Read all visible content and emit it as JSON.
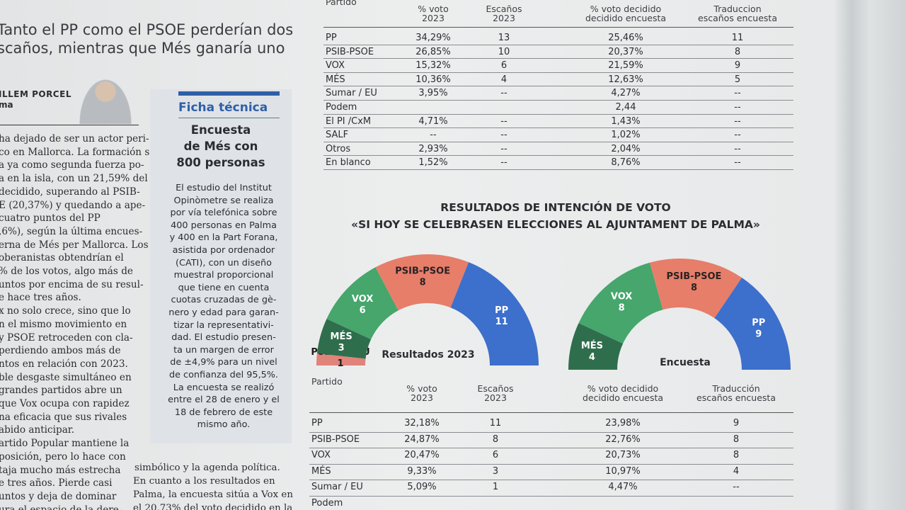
{
  "headline": [
    "Tanto el PP como el PSOE perderían dos",
    "scaños, mientras que Més ganaría uno"
  ],
  "byline": {
    "name": "ILLEM PORCEL",
    "role": "ma"
  },
  "left_column": [
    "ha dejado de ser un actor peri-",
    "co en Mallorca. La formación se",
    "a ya como segunda fuerza po-",
    "a en la isla, con un 21,59% del",
    "decidido, superando al PSIB-",
    "E (20,37%) y quedando a ape-",
    "cuatro puntos del PP",
    ",6%), según la última encues-",
    "erna de Més per Mallorca. Los",
    "oberanistas obtendrían el",
    "% de los votos, algo más de",
    "untos por encima de su resul-",
    "e hace tres años.",
    "x no solo crece, sino que lo",
    "n el mismo movimiento en",
    "y PSOE retroceden con cla-",
    "perdiendo ambos más de",
    "ntos en relación con 2023.",
    "ble desgaste simultáneo en",
    "grandes partidos abre un",
    "que Vox ocupa con rapidez",
    "na eficacia que sus rivales",
    "abido anticipar.",
    "artido Popular mantiene la",
    "posición, pero lo hace con",
    "taja mucho más estrecha",
    "e tres años. Pierde casi",
    "untos y deja de dominar",
    "ura el espacio de la dere-"
  ],
  "ficha": {
    "title": "Ficha técnica",
    "subtitle": [
      "Encuesta",
      "de Més con",
      "800 personas"
    ],
    "body": [
      "El estudio del Institut",
      "Opinòmetre se realiza",
      "por vía telefónica sobre",
      "400 personas en Palma",
      "y 400 en la Part Forana,",
      "asistida por ordenador",
      "(CATI), con un diseño",
      "muestral proporcional",
      "que tiene en cuenta",
      "cuotas cruzadas de gè-",
      "nero y edad para garan-",
      "tizar la representativi-",
      "dad. El estudio presen-",
      "ta un margen de error",
      "de ±4,9% para un nivel",
      "de confianza del 95,5%.",
      "La encuesta se realizó",
      "entre el 28 de enero y el",
      "18 de febrero de este",
      "mismo año."
    ]
  },
  "middle_column": [
    "simbólico y la agenda política.",
    "En cuanto a los resultados en",
    "Palma, la encuesta sitúa a Vox en",
    "el 20,73% del voto decidido en la"
  ],
  "table_top": {
    "header": [
      "Partido",
      "% voto\n2023",
      "Escaños\n2023",
      "% voto decidido\ndecidido encuesta",
      "Traduccion\nescaños encuesta"
    ],
    "rows": [
      [
        "PP",
        "34,29%",
        "13",
        "25,46%",
        "11"
      ],
      [
        "PSIB-PSOE",
        "26,85%",
        "10",
        "20,37%",
        "8"
      ],
      [
        "VOX",
        "15,32%",
        "6",
        "21,59%",
        "9"
      ],
      [
        "MÉS",
        "10,36%",
        "4",
        "12,63%",
        "5"
      ],
      [
        "Sumar / EU",
        "3,95%",
        "--",
        "4,27%",
        "--"
      ],
      [
        "Podem",
        null,
        null,
        "2,44",
        "--"
      ],
      [
        "El PI /CxM",
        "4,71%",
        "--",
        "1,43%",
        "--"
      ],
      [
        "SALF",
        "--",
        "--",
        "1,02%",
        "--"
      ],
      [
        "Otros",
        "2,93%",
        "--",
        "2,04%",
        "--"
      ],
      [
        "En blanco",
        "1,52%",
        "--",
        "8,76%",
        "--"
      ]
    ]
  },
  "charts_title": [
    "RESULTADOS DE INTENCIÓN DE VOTO",
    "«SI HOY SE CELEBRASEN ELECCIONES AL AJUNTAMENT DE PALMA»"
  ],
  "charts": [
    {
      "type": "semicircle",
      "label": "Resultados 2023",
      "segments": [
        {
          "name": "Podem / EU",
          "seats": 1,
          "color": "#e0837a"
        },
        {
          "name": "MÉS",
          "seats": 3,
          "color": "#2f6e4c"
        },
        {
          "name": "VOX",
          "seats": 6,
          "color": "#46a66c"
        },
        {
          "name": "PSIB-PSOE",
          "seats": 8,
          "color": "#e67e6a"
        },
        {
          "name": "PP",
          "seats": 11,
          "color": "#3d6fcc"
        }
      ]
    },
    {
      "type": "semicircle",
      "label": "Encuesta",
      "segments": [
        {
          "name": "MÉS",
          "seats": 4,
          "color": "#2f6e4c"
        },
        {
          "name": "VOX",
          "seats": 8,
          "color": "#46a66c"
        },
        {
          "name": "PSIB-PSOE",
          "seats": 8,
          "color": "#e67e6a"
        },
        {
          "name": "PP",
          "seats": 9,
          "color": "#3d6fcc"
        }
      ]
    }
  ],
  "table_bottom": {
    "header": [
      "Partido",
      "% voto\n2023",
      "Escaños\n2023",
      "% voto decidido\ndecidido encuesta",
      "Traducción\nescaños encuesta"
    ],
    "rows": [
      [
        "PP",
        "32,18%",
        "11",
        "23,98%",
        "9"
      ],
      [
        "PSIB-PSOE",
        "24,87%",
        "8",
        "22,76%",
        "8"
      ],
      [
        "VOX",
        "20,47%",
        "6",
        "20,73%",
        "8"
      ],
      [
        "MÉS",
        "9,33%",
        "3",
        "10,97%",
        "4"
      ],
      [
        "Sumar / EU",
        "5,09%",
        "1",
        "4,47%",
        "--"
      ],
      [
        "Podem",
        null,
        null,
        null,
        null
      ]
    ]
  }
}
